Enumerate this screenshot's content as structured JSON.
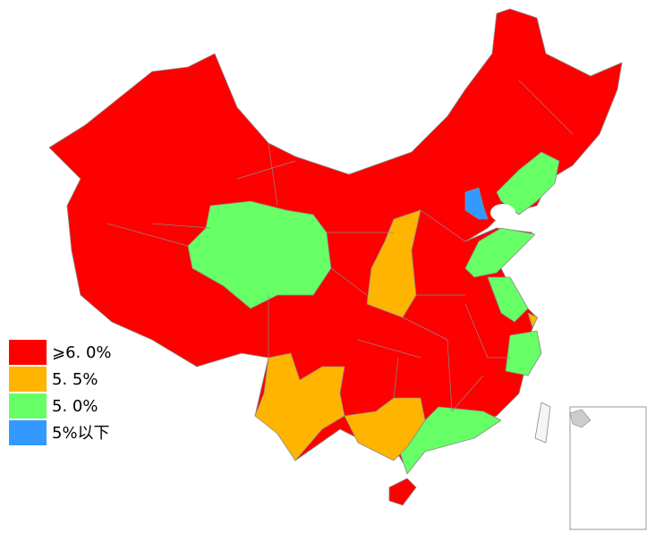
{
  "legend": {
    "items": [
      {
        "label": "⩾6. 0%",
        "color": "#ff0000"
      },
      {
        "label": "5. 5%",
        "color": "#ffb400"
      },
      {
        "label": "5. 0%",
        "color": "#66ff66"
      },
      {
        "label": "5%以下",
        "color": "#3399ff"
      }
    ]
  }
}
